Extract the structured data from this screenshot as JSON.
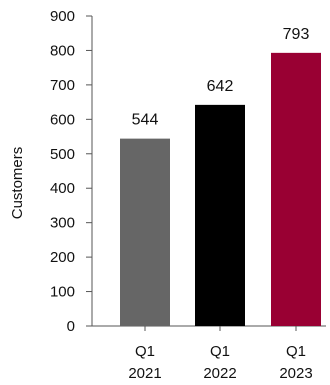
{
  "chart_data": {
    "type": "bar",
    "categories": [
      [
        "Q1",
        "2021"
      ],
      [
        "Q1",
        "2022"
      ],
      [
        "Q1",
        "2023"
      ]
    ],
    "values": [
      544,
      642,
      793
    ],
    "data_labels": [
      "544",
      "642",
      "793"
    ],
    "colors": [
      "#666666",
      "#000000",
      "#990033"
    ],
    "ylabel": "Customers",
    "xlabel": "",
    "ylim": [
      0,
      900
    ],
    "yticks": [
      0,
      100,
      200,
      300,
      400,
      500,
      600,
      700,
      800,
      900
    ],
    "grid": false,
    "legend": "none"
  }
}
